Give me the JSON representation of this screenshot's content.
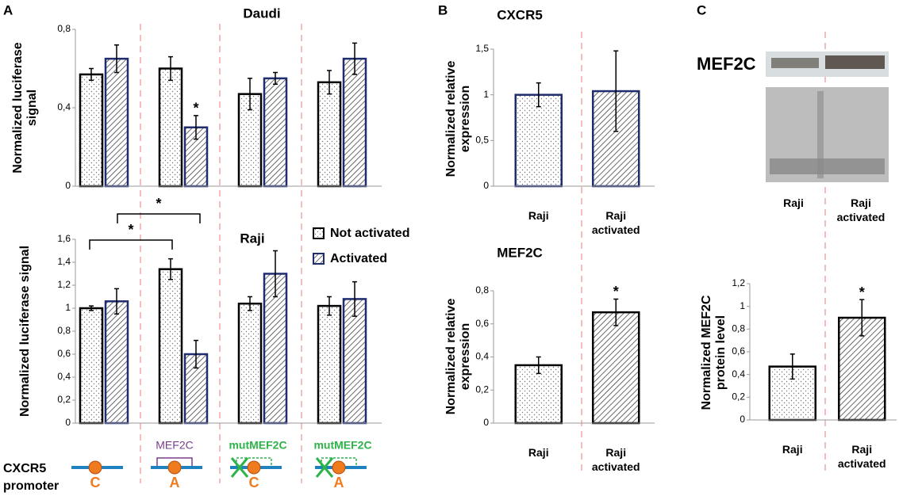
{
  "panels": [
    "A",
    "B",
    "C"
  ],
  "promoter": {
    "label_lines": [
      "CXCR5",
      "promoter"
    ],
    "sites": [
      "C",
      "A",
      "C",
      "A"
    ],
    "motifs": [
      "MEF2C",
      "mutMEF2C",
      "mutMEF2C"
    ]
  },
  "blot": {
    "label": "MEF2C",
    "categories": [
      "Raji",
      "Raji activated"
    ]
  },
  "chart_data": [
    {
      "type": "bar",
      "title": "Daudi",
      "ylabel": "Normalized luciferase signal",
      "categories": [
        null,
        null,
        null,
        null
      ],
      "series": [
        {
          "color": "#000000",
          "pattern": "dots",
          "values": [
            0.57,
            0.6,
            0.47,
            0.53
          ],
          "errors": [
            0.03,
            0.06,
            0.08,
            0.06
          ]
        },
        {
          "color": "#1f2d6e",
          "pattern": "hatch",
          "values": [
            0.65,
            0.3,
            0.55,
            0.65
          ],
          "errors": [
            0.07,
            0.06,
            0.03,
            0.08
          ]
        }
      ],
      "ylim": [
        0,
        0.8
      ],
      "yticks": [
        0,
        {
          "value": 0.4,
          "label": "0,4"
        },
        {
          "value": 0.8,
          "label": "0,8"
        }
      ],
      "annotations": [
        "*"
      ]
    },
    {
      "type": "bar",
      "title": "Raji",
      "ylabel": "Normalized luciferase signal",
      "categories": [
        null,
        null,
        null,
        null
      ],
      "series": [
        {
          "name": "Not activated",
          "color": "#000000",
          "pattern": "dots",
          "values": [
            1.0,
            1.34,
            1.04,
            1.02
          ],
          "errors": [
            0.02,
            0.09,
            0.06,
            0.08
          ]
        },
        {
          "name": "Activated",
          "color": "#1f2d6e",
          "pattern": "hatch",
          "values": [
            1.06,
            0.6,
            1.3,
            1.08
          ],
          "errors": [
            0.11,
            0.12,
            0.2,
            0.15
          ]
        }
      ],
      "ylim": [
        0,
        1.6
      ],
      "yticks": [
        0,
        {
          "value": 0.2,
          "label": "0,2"
        },
        {
          "value": 0.4,
          "label": "0,4"
        },
        {
          "value": 0.6,
          "label": "0,6"
        },
        {
          "value": 0.8,
          "label": "0,8"
        },
        1,
        {
          "value": 1.2,
          "label": "1,2"
        },
        {
          "value": 1.4,
          "label": "1,4"
        },
        {
          "value": 1.6,
          "label": "1,6"
        }
      ],
      "legend": "upper right",
      "annotations": [
        "*",
        "*"
      ]
    },
    {
      "type": "bar",
      "title": "CXCR5",
      "ylabel": "Normalized relative expression",
      "categories": [
        "Raji",
        "Raji activated"
      ],
      "colors": [
        "#1f2d6e",
        "#1f2d6e"
      ],
      "patterns": [
        "dots",
        "hatch"
      ],
      "values": [
        1.0,
        1.04
      ],
      "errors": [
        0.13,
        0.44
      ],
      "ylim": [
        0,
        1.5
      ],
      "yticks": [
        0,
        {
          "value": 0.5,
          "label": "0,5"
        },
        1,
        {
          "value": 1.5,
          "label": "1,5"
        }
      ],
      "annotations": []
    },
    {
      "type": "bar",
      "title": "MEF2C",
      "ylabel": "Normalized relative expression",
      "categories": [
        "Raji",
        "Raji activated"
      ],
      "colors": [
        "#000000",
        "#000000"
      ],
      "patterns": [
        "dots",
        "hatch"
      ],
      "values": [
        0.35,
        0.67
      ],
      "errors": [
        0.05,
        0.08
      ],
      "ylim": [
        0,
        0.8
      ],
      "yticks": [
        0,
        {
          "value": 0.2,
          "label": "0,2"
        },
        {
          "value": 0.4,
          "label": "0,4"
        },
        {
          "value": 0.6,
          "label": "0,6"
        },
        {
          "value": 0.8,
          "label": "0,8"
        }
      ],
      "annotations": [
        "*"
      ]
    },
    {
      "type": "bar",
      "ylabel": "Normalized MEF2C protein level",
      "categories": [
        "Raji",
        "Raji activated"
      ],
      "colors": [
        "#000000",
        "#000000"
      ],
      "patterns": [
        "dots",
        "hatch"
      ],
      "values": [
        0.47,
        0.9
      ],
      "errors": [
        0.11,
        0.16
      ],
      "ylim": [
        0,
        1.2
      ],
      "yticks": [
        0,
        {
          "value": 0.2,
          "label": "0,2"
        },
        {
          "value": 0.4,
          "label": "0,4"
        },
        {
          "value": 0.6,
          "label": "0,6"
        },
        {
          "value": 0.8,
          "label": "0,8"
        },
        1,
        {
          "value": 1.2,
          "label": "1,2"
        }
      ],
      "annotations": [
        "*"
      ]
    }
  ]
}
